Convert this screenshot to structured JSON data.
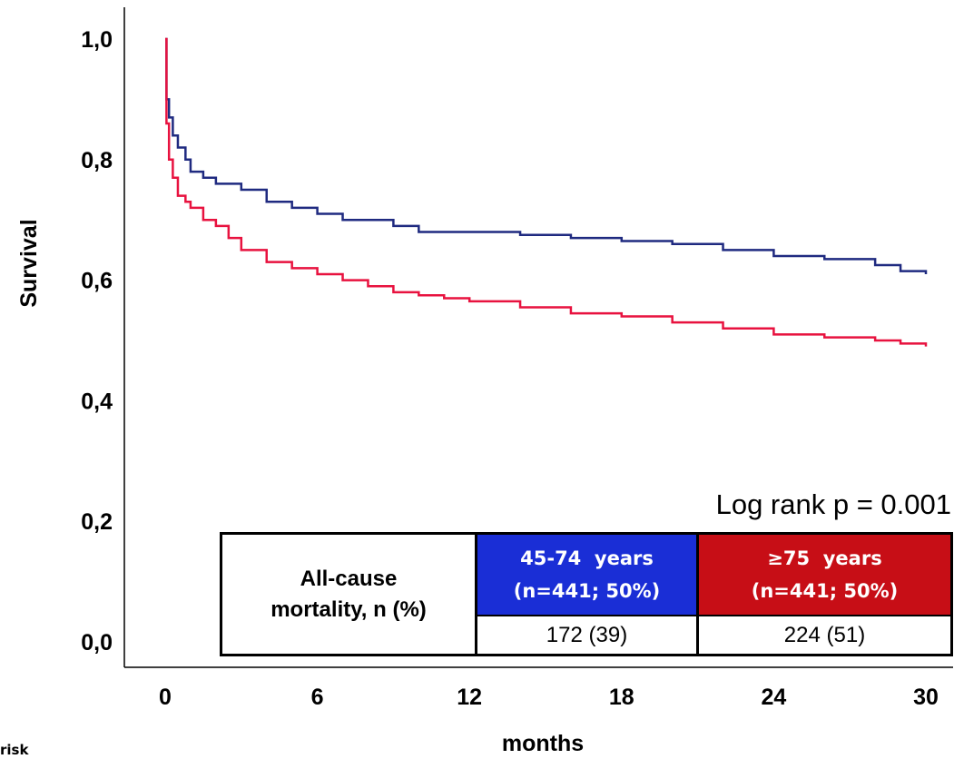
{
  "chart_data": {
    "type": "line",
    "title": "",
    "xlabel": "months",
    "ylabel": "Survival",
    "xlim": [
      0,
      30
    ],
    "ylim": [
      0,
      1
    ],
    "x_ticks": [
      "0",
      "6",
      "12",
      "18",
      "24",
      "30"
    ],
    "y_ticks": [
      "0,0",
      "0,2",
      "0,4",
      "0,6",
      "0,8",
      "1,0"
    ],
    "grid": false,
    "annotation": "Log rank p = 0.001",
    "series": [
      {
        "name": "45-74 years",
        "color": "#1f2a80",
        "step": true,
        "x": [
          0,
          0.05,
          0.15,
          0.3,
          0.5,
          0.8,
          1.0,
          1.5,
          2.0,
          3.0,
          4.0,
          5.0,
          6.0,
          7.0,
          8.0,
          9.0,
          10.0,
          11.0,
          12.0,
          14.0,
          16.0,
          18.0,
          20.0,
          22.0,
          24.0,
          26.0,
          28.0,
          29.0,
          30.0
        ],
        "y": [
          1.0,
          0.9,
          0.87,
          0.84,
          0.82,
          0.8,
          0.78,
          0.77,
          0.76,
          0.75,
          0.73,
          0.72,
          0.71,
          0.7,
          0.7,
          0.69,
          0.68,
          0.68,
          0.68,
          0.675,
          0.67,
          0.665,
          0.66,
          0.65,
          0.64,
          0.635,
          0.625,
          0.615,
          0.61
        ]
      },
      {
        "name": "≥75 years",
        "color": "#e8123f",
        "step": true,
        "x": [
          0,
          0.05,
          0.15,
          0.3,
          0.5,
          0.8,
          1.0,
          1.5,
          2.0,
          2.5,
          3.0,
          4.0,
          5.0,
          6.0,
          7.0,
          8.0,
          9.0,
          10.0,
          11.0,
          12.0,
          14.0,
          16.0,
          18.0,
          20.0,
          22.0,
          24.0,
          26.0,
          28.0,
          29.0,
          30.0
        ],
        "y": [
          1.0,
          0.86,
          0.8,
          0.77,
          0.74,
          0.73,
          0.72,
          0.7,
          0.69,
          0.67,
          0.65,
          0.63,
          0.62,
          0.61,
          0.6,
          0.59,
          0.58,
          0.575,
          0.57,
          0.565,
          0.555,
          0.545,
          0.54,
          0.53,
          0.52,
          0.51,
          0.505,
          0.5,
          0.495,
          0.49
        ]
      }
    ]
  },
  "logrank": "Log rank p = 0.001",
  "table": {
    "label_line1": "All-cause",
    "label_line2": "mortality, n (%)",
    "group1": {
      "name": "45-74  years",
      "n": "(n=441; 50%)",
      "value": "172 (39)",
      "color": "#1a2ed6"
    },
    "group2": {
      "name": "≥75  years",
      "n": "(n=441; 50%)",
      "value": "224 (51)",
      "color": "#c70e16"
    }
  },
  "cut_text": "risk"
}
